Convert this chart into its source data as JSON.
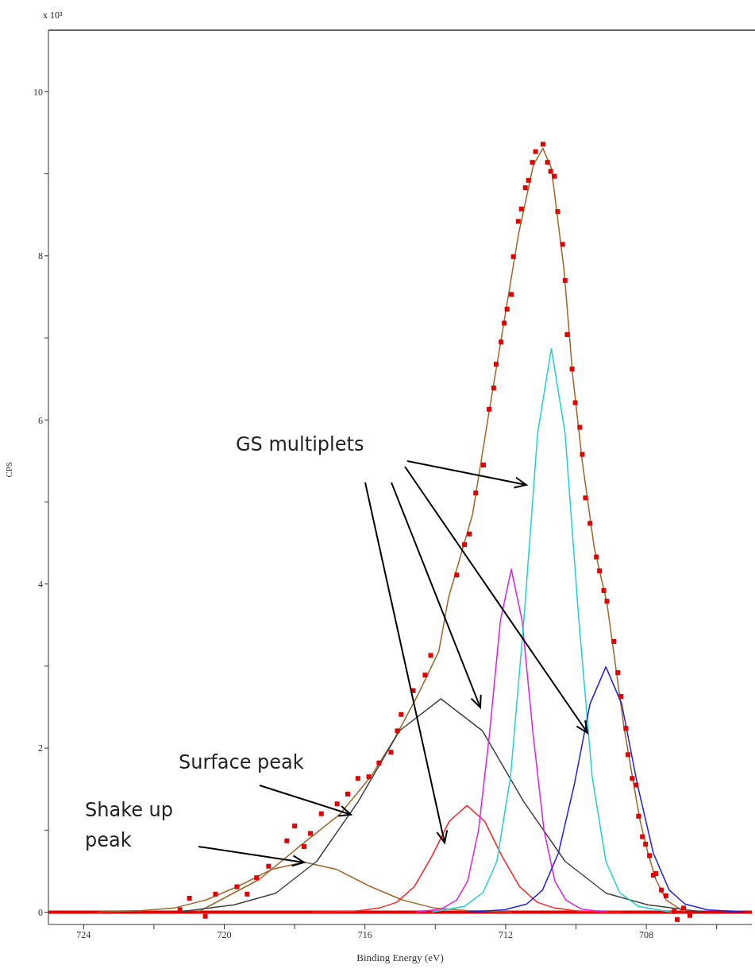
{
  "chart_data": {
    "type": "line",
    "xlabel": "Binding Energy (eV)",
    "ylabel": "CPS",
    "annotations": [
      "GS multiplets",
      {
        "text": "Surface peak",
        "x": 716.4,
        "y": 1.19
      },
      "Shake up peak",
      "x 10³"
    ],
    "xlim": [
      725,
      705
    ],
    "xticks": [
      724,
      {
        "value": 722,
        "label": null
      },
      720,
      {
        "value": 718,
        "label": null
      },
      716,
      {
        "value": 714,
        "label": null
      },
      712,
      {
        "value": 710,
        "label": null
      },
      708,
      {
        "value": 706,
        "label": null
      }
    ],
    "ylim": [
      -0.15,
      10.75
    ],
    "yticks": [
      0,
      {
        "value": 1,
        "label": null
      },
      2,
      {
        "value": 3,
        "label": null
      },
      4,
      {
        "value": 5,
        "label": null
      },
      6,
      {
        "value": 7,
        "label": null
      },
      8,
      {
        "value": 9,
        "label": null
      },
      10
    ],
    "grid": false,
    "legend": false,
    "ref_lines": [
      {
        "axis": "y",
        "value": 0,
        "color": "#e00000"
      }
    ],
    "series": [
      {
        "color": "#a06428",
        "x": [
          720.76,
          720.1,
          719.0,
          717.84,
          716.72,
          715.82,
          715.15,
          714.47,
          713.9,
          713.62,
          712.94,
          712.49,
          712.07,
          711.64,
          711.21,
          710.94,
          710.7,
          710.34,
          710.09,
          709.82,
          709.48,
          709.12,
          708.63,
          708.4,
          708.18,
          707.96,
          707.73,
          707.44,
          706.9
        ],
        "values": [
          0,
          0.15,
          0.4,
          0.81,
          1.19,
          1.66,
          2.12,
          2.67,
          3.18,
          3.84,
          4.85,
          6.05,
          7.13,
          8.25,
          9.11,
          9.31,
          9.07,
          7.83,
          6.53,
          5.49,
          4.44,
          3.77,
          2.24,
          1.66,
          1.12,
          0.73,
          0.4,
          0.15,
          0
        ]
      },
      {
        "color": "#a06428",
        "x": [
          723.63,
          722.36,
          721.43,
          720.51,
          719.58,
          718.66,
          717.73,
          716.8,
          715.88,
          714.95,
          714.03,
          713.1,
          711.83
        ],
        "values": [
          0,
          0.02,
          0.05,
          0.15,
          0.32,
          0.52,
          0.61,
          0.52,
          0.32,
          0.15,
          0.05,
          0.02,
          0
        ]
      },
      {
        "color": "#404040",
        "x": [
          721.34,
          719.72,
          718.54,
          717.37,
          716.19,
          715.02,
          713.84,
          712.66,
          711.49,
          710.31,
          709.14,
          707.96,
          706.34
        ],
        "values": [
          0,
          0.09,
          0.23,
          0.62,
          1.35,
          2.21,
          2.6,
          2.21,
          1.35,
          0.62,
          0.23,
          0.09,
          0
        ]
      },
      {
        "color": "#ff2020",
        "x": [
          717.5,
          716.3,
          715.6,
          715.1,
          714.6,
          714.1,
          713.6,
          713.1,
          712.6,
          712.1,
          711.6,
          711.1,
          710.6,
          709.9,
          708.7
        ],
        "values": [
          0,
          0.01,
          0.05,
          0.12,
          0.31,
          0.68,
          1.11,
          1.3,
          1.11,
          0.68,
          0.31,
          0.12,
          0.05,
          0.01,
          0
        ]
      },
      {
        "color": "#e020e0",
        "x": [
          714.57,
          713.82,
          713.39,
          713.08,
          712.77,
          712.46,
          712.15,
          711.84,
          711.53,
          711.22,
          710.91,
          710.6,
          710.29,
          709.86,
          709.11
        ],
        "values": [
          0,
          0.04,
          0.15,
          0.38,
          1.0,
          2.17,
          3.55,
          4.18,
          3.55,
          2.17,
          1.0,
          0.38,
          0.15,
          0.04,
          0
        ]
      },
      {
        "color": "#20d0d0",
        "x": [
          714.11,
          713.18,
          712.64,
          712.25,
          711.86,
          711.48,
          711.09,
          710.7,
          710.31,
          709.92,
          709.54,
          709.15,
          708.76,
          708.22,
          707.29
        ],
        "values": [
          0,
          0.07,
          0.24,
          0.62,
          1.65,
          3.57,
          5.84,
          6.87,
          5.84,
          3.57,
          1.65,
          0.62,
          0.24,
          0.07,
          0
        ]
      },
      {
        "color": "#2020e0",
        "x": [
          713.11,
          712.03,
          711.4,
          710.95,
          710.5,
          710.05,
          709.6,
          709.15,
          708.7,
          708.25,
          707.8,
          707.35,
          706.9,
          706.27,
          705.19
        ],
        "values": [
          0,
          0.03,
          0.1,
          0.27,
          0.72,
          1.55,
          2.54,
          2.99,
          2.54,
          1.55,
          0.72,
          0.27,
          0.1,
          0.03,
          0
        ]
      },
      {
        "type": "scatter",
        "color": "#e00000",
        "marker": "square",
        "x": [
          721.26,
          720.99,
          720.54,
          720.25,
          719.64,
          719.35,
          719.08,
          718.74,
          718.22,
          718.0,
          717.73,
          717.55,
          717.24,
          716.79,
          716.49,
          716.2,
          715.89,
          715.6,
          715.26,
          715.08,
          714.97,
          714.63,
          714.29,
          714.13,
          713.39,
          713.17,
          713.03,
          712.85,
          712.63,
          712.47,
          712.34,
          712.27,
          712.13,
          712.04,
          711.96,
          711.84,
          711.78,
          711.64,
          711.55,
          711.44,
          711.35,
          711.24,
          711.15,
          710.94,
          710.81,
          710.72,
          710.61,
          710.52,
          710.38,
          710.31,
          710.25,
          710.11,
          710.02,
          709.89,
          709.82,
          709.73,
          709.6,
          709.42,
          709.33,
          709.21,
          709.12,
          708.92,
          708.81,
          708.72,
          708.58,
          708.52,
          708.4,
          708.29,
          708.22,
          708.11,
          708.02,
          707.91,
          707.8,
          707.73,
          707.57,
          707.44,
          707.21,
          707.12,
          706.94,
          706.76
        ],
        "values": [
          0.03,
          0.17,
          -0.05,
          0.22,
          0.31,
          0.22,
          0.42,
          0.56,
          0.87,
          1.05,
          0.8,
          0.96,
          1.2,
          1.32,
          1.44,
          1.63,
          1.65,
          1.82,
          1.95,
          2.21,
          2.41,
          2.7,
          2.89,
          3.13,
          4.11,
          4.48,
          4.61,
          5.11,
          5.45,
          6.13,
          6.39,
          6.68,
          6.95,
          7.18,
          7.35,
          7.53,
          7.99,
          8.42,
          8.57,
          8.83,
          8.92,
          9.14,
          9.27,
          9.36,
          9.14,
          9.03,
          8.97,
          8.54,
          8.14,
          7.7,
          7.04,
          6.62,
          6.21,
          5.91,
          5.58,
          5.05,
          4.74,
          4.33,
          4.16,
          3.92,
          3.79,
          3.3,
          2.92,
          2.63,
          2.24,
          1.92,
          1.63,
          1.55,
          1.17,
          0.92,
          0.83,
          0.69,
          0.45,
          0.47,
          0.27,
          0.2,
          0.01,
          -0.09,
          0.05,
          -0.04
        ]
      }
    ]
  }
}
